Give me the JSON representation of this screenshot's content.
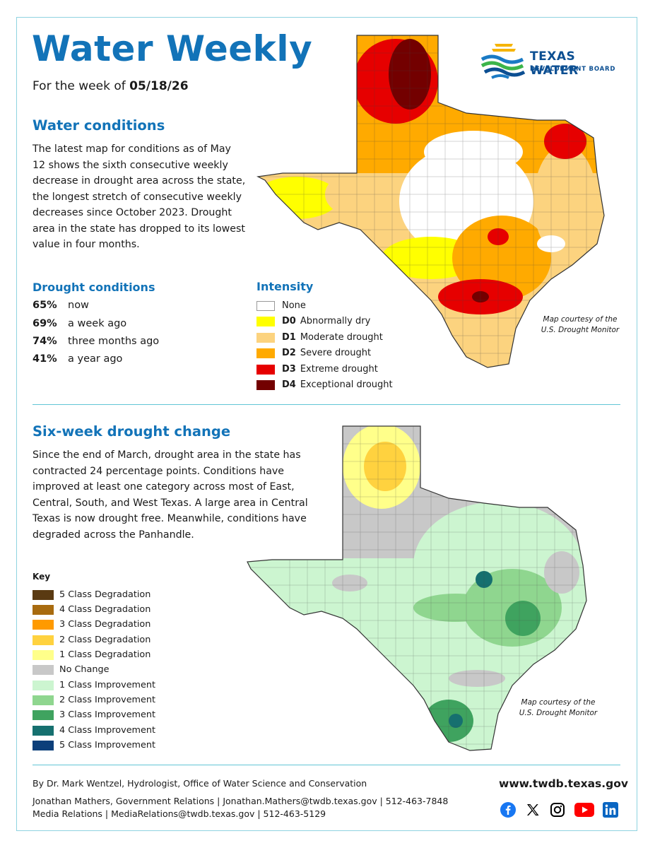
{
  "header": {
    "title": "Water Weekly",
    "week_prefix": "For the week of",
    "week_date": "05/18/26",
    "logo_line1": "TEXAS WATER",
    "logo_line2": "DEVELOPMENT BOARD"
  },
  "water_conditions": {
    "heading": "Water conditions",
    "lines": [
      "The latest map for conditions as of May",
      "12 shows the sixth consecutive weekly",
      "decrease in drought area across the state,",
      "the longest stretch of consecutive weekly",
      "decreases since October 2023. Drought",
      "area in the state has dropped to its lowest",
      "value in four months."
    ]
  },
  "drought_conditions": {
    "heading": "Drought conditions",
    "items": [
      {
        "pct": "65%",
        "label": "now"
      },
      {
        "pct": "69%",
        "label": "a week ago"
      },
      {
        "pct": "74%",
        "label": "three months ago"
      },
      {
        "pct": "41%",
        "label": "a year ago"
      }
    ]
  },
  "intensity": {
    "heading": "Intensity",
    "items": [
      {
        "code": "",
        "label": "None",
        "color": "#ffffff"
      },
      {
        "code": "D0",
        "label": "Abnormally dry",
        "color": "#ffff00"
      },
      {
        "code": "D1",
        "label": "Moderate drought",
        "color": "#fcd37f"
      },
      {
        "code": "D2",
        "label": "Severe drought",
        "color": "#ffaa00"
      },
      {
        "code": "D3",
        "label": "Extreme drought",
        "color": "#e60000"
      },
      {
        "code": "D4",
        "label": "Exceptional drought",
        "color": "#730000"
      }
    ]
  },
  "map1_courtesy": [
    "Map courtesy of the",
    "U.S. Drought Monitor"
  ],
  "six_week": {
    "heading": "Six-week drought change",
    "lines": [
      "Since the end of March, drought area in the state has",
      "contracted 24 percentage points. Conditions have",
      "improved at least one category across most of East,",
      "Central, South, and West Texas. A large area in Central",
      "Texas is now drought free. Meanwhile, conditions have",
      "degraded across the Panhandle."
    ]
  },
  "key": {
    "title": "Key",
    "items": [
      {
        "label": "5 Class Degradation",
        "color": "#5a3a12"
      },
      {
        "label": "4 Class Degradation",
        "color": "#a86b0f"
      },
      {
        "label": "3 Class Degradation",
        "color": "#ff9a00"
      },
      {
        "label": "2 Class Degradation",
        "color": "#ffd23f"
      },
      {
        "label": "1 Class Degradation",
        "color": "#ffff8a"
      },
      {
        "label": "No Change",
        "color": "#c8c8c8"
      },
      {
        "label": "1 Class Improvement",
        "color": "#ccf5d0"
      },
      {
        "label": "2 Class Improvement",
        "color": "#8fd68f"
      },
      {
        "label": "3 Class Improvement",
        "color": "#3fa35f"
      },
      {
        "label": "4 Class Improvement",
        "color": "#16706f"
      },
      {
        "label": "5 Class Improvement",
        "color": "#0c3f7a"
      }
    ]
  },
  "map2_courtesy": [
    "Map courtesy of the",
    "U.S. Drought Monitor"
  ],
  "footer": {
    "author": "By Dr. Mark Wentzel, Hydrologist, Office of Water Science and Conservation",
    "contact1": "Jonathan Mathers, Government Relations | Jonathan.Mathers@twdb.texas.gov | 512-463-7848",
    "contact2": "Media Relations | MediaRelations@twdb.texas.gov | 512-463-5129",
    "website": "www.twdb.texas.gov"
  },
  "social_icons": [
    "facebook-icon",
    "x-icon",
    "instagram-icon",
    "youtube-icon",
    "linkedin-icon"
  ]
}
